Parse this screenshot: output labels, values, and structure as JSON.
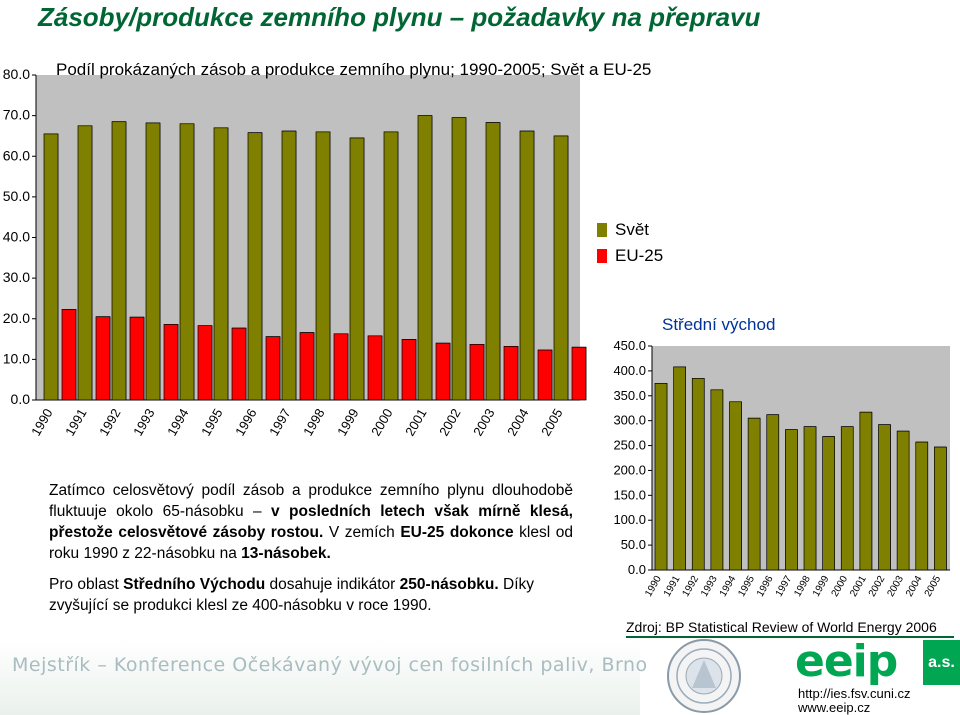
{
  "page": {
    "title": "Zásoby/produkce zemního plynu – požadavky na přepravu",
    "paragraph1": [
      {
        "text": "Zatímco celosvětový podíl zásob a produkce zemního plynu dlouhodobě fluktuuje okolo 65-násobku – ",
        "bold": false
      },
      {
        "text": "v posledních letech však mírně klesá, přestože celosvětové zásoby rostou.",
        "bold": true
      },
      {
        "text": " V zemích ",
        "bold": false
      },
      {
        "text": "EU-25 dokonce",
        "bold": true
      },
      {
        "text": " klesl od roku 1990 z 22-násobku na ",
        "bold": false
      },
      {
        "text": "13-násobek.",
        "bold": true
      }
    ],
    "paragraph2": [
      {
        "text": "Pro oblast ",
        "bold": false
      },
      {
        "text": "Středního Východu",
        "bold": true
      },
      {
        "text": " dosahuje indikátor ",
        "bold": false
      },
      {
        "text": "250-násobku.",
        "bold": true
      },
      {
        "text": " Díky zvyšující se produkci klesl ze 400-násobku v roce 1990.",
        "bold": false
      }
    ],
    "source": "Zdroj: BP Statistical Review of World Energy 2006",
    "footer": "Mejstřík – Konference Očekávaný vývoj cen fosilních paliv, Brno",
    "logo_text": "eeip",
    "logo_suffix": "a.s.",
    "url1": "http://ies.fsv.cuni.cz",
    "url2": "www.eeip.cz"
  },
  "chart_data": [
    {
      "type": "bar",
      "title": "Podíl prokázaných zásob a produkce zemního plynu; 1990-2005; Svět a EU-25",
      "categories": [
        "1990",
        "1991",
        "1992",
        "1993",
        "1994",
        "1995",
        "1996",
        "1997",
        "1998",
        "1999",
        "2000",
        "2001",
        "2002",
        "2003",
        "2004",
        "2005"
      ],
      "ylim": [
        0,
        80
      ],
      "yticks": [
        0,
        10,
        20,
        30,
        40,
        50,
        60,
        70,
        80
      ],
      "ytick_labels": [
        "0.0",
        "10.0",
        "20.0",
        "30.0",
        "40.0",
        "50.0",
        "60.0",
        "70.0",
        "80.0"
      ],
      "series": [
        {
          "name": "Svět",
          "color": "#808000",
          "values": [
            65.5,
            67.5,
            68.5,
            68.2,
            68.0,
            67.0,
            65.8,
            66.2,
            66.0,
            64.5,
            66.0,
            70.0,
            69.5,
            68.3,
            66.2,
            65.0
          ]
        },
        {
          "name": "EU-25",
          "color": "#ff0000",
          "values": [
            22.3,
            20.5,
            20.4,
            18.6,
            18.3,
            17.7,
            15.6,
            16.6,
            16.3,
            15.8,
            14.9,
            14.0,
            13.7,
            13.2,
            12.3,
            13.0
          ]
        }
      ],
      "legend_position": "right",
      "plot_background": "#c0c0c0"
    },
    {
      "type": "bar",
      "title": "Střední východ",
      "categories": [
        "1990",
        "1991",
        "1992",
        "1993",
        "1994",
        "1995",
        "1996",
        "1997",
        "1998",
        "1999",
        "2000",
        "2001",
        "2002",
        "2003",
        "2004",
        "2005"
      ],
      "ylim": [
        0,
        450
      ],
      "yticks": [
        0,
        50,
        100,
        150,
        200,
        250,
        300,
        350,
        400,
        450
      ],
      "ytick_labels": [
        "0.0",
        "50.0",
        "100.0",
        "150.0",
        "200.0",
        "250.0",
        "300.0",
        "350.0",
        "400.0",
        "450.0"
      ],
      "series": [
        {
          "color": "#808000",
          "values": [
            375,
            408,
            385,
            362,
            338,
            305,
            312,
            282,
            288,
            268,
            288,
            317,
            292,
            279,
            257,
            247
          ]
        }
      ],
      "plot_background": "#c0c0c0"
    }
  ]
}
